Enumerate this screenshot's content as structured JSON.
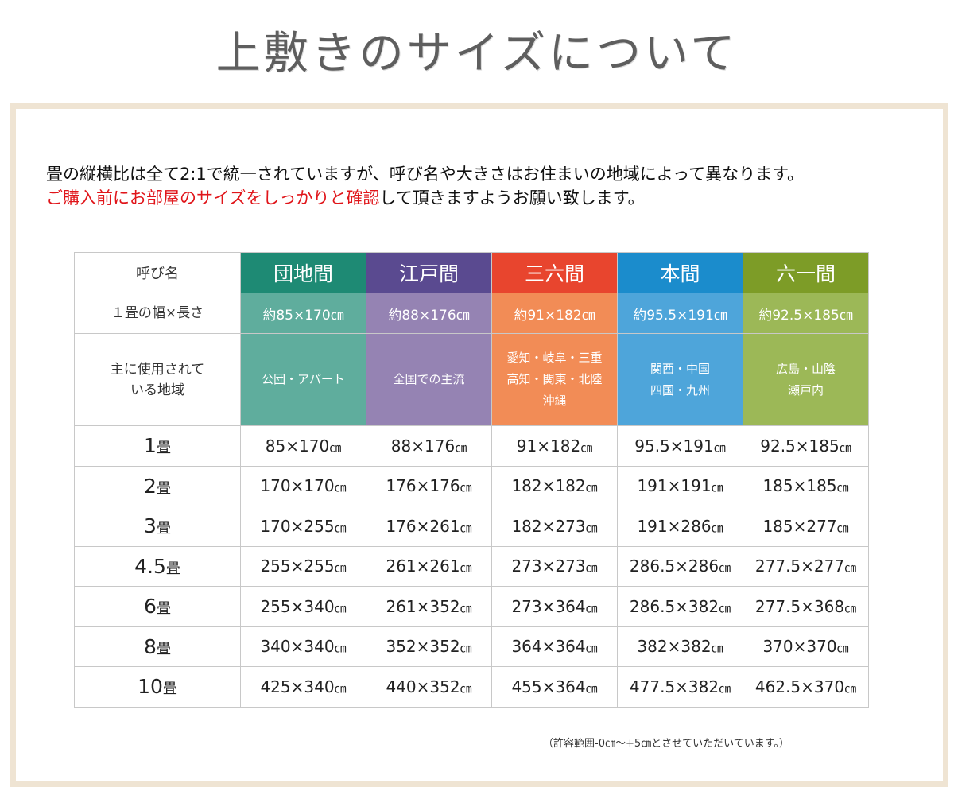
{
  "page": {
    "title": "上敷きのサイズについて",
    "intro_line1": "畳の縦横比は全て2:1で統一されていますが、呼び名や大きさはお住まいの地域によって異なります。",
    "intro_line2_red": "ご購入前にお部屋のサイズをしっかりと確認",
    "intro_line2_rest": "して頂きますようお願い致します。",
    "note": "（許容範囲-0㎝～+5㎝とさせていただいています。）"
  },
  "table": {
    "header_label": "呼び名",
    "size_label": "１畳の幅×長さ",
    "region_label_line1": "主に使用されて",
    "region_label_line2": "いる地域",
    "unit": "㎝",
    "columns": [
      {
        "name": "団地間",
        "size": "約85×170㎝",
        "regions": [
          "公団・アパート"
        ],
        "head_color": "#1e8a74",
        "sub_color": "#5fad9d"
      },
      {
        "name": "江戸間",
        "size": "約88×176㎝",
        "regions": [
          "全国での主流"
        ],
        "head_color": "#5a4a90",
        "sub_color": "#9583b3"
      },
      {
        "name": "三六間",
        "size": "約91×182㎝",
        "regions": [
          "愛知・岐阜・三重",
          "高知・関東・北陸",
          "沖縄"
        ],
        "head_color": "#e8452e",
        "sub_color": "#f28c56"
      },
      {
        "name": "本間",
        "size": "約95.5×191㎝",
        "regions": [
          "関西・中国",
          "四国・九州"
        ],
        "head_color": "#1b8ccc",
        "sub_color": "#4ea5da"
      },
      {
        "name": "六一間",
        "size": "約92.5×185㎝",
        "regions": [
          "広島・山陰",
          "瀬戸内"
        ],
        "head_color": "#7d9c27",
        "sub_color": "#9cb857"
      }
    ],
    "rows": [
      {
        "num": "1",
        "unit": "畳",
        "values": [
          "85×170",
          "88×176",
          "91×182",
          "95.5×191",
          "92.5×185"
        ]
      },
      {
        "num": "2",
        "unit": "畳",
        "values": [
          "170×170",
          "176×176",
          "182×182",
          "191×191",
          "185×185"
        ]
      },
      {
        "num": "3",
        "unit": "畳",
        "values": [
          "170×255",
          "176×261",
          "182×273",
          "191×286",
          "185×277"
        ]
      },
      {
        "num": "4.5",
        "unit": "畳",
        "values": [
          "255×255",
          "261×261",
          "273×273",
          "286.5×286",
          "277.5×277"
        ]
      },
      {
        "num": "6",
        "unit": "畳",
        "values": [
          "255×340",
          "261×352",
          "273×364",
          "286.5×382",
          "277.5×368"
        ]
      },
      {
        "num": "8",
        "unit": "畳",
        "values": [
          "340×340",
          "352×352",
          "364×364",
          "382×382",
          "370×370"
        ]
      },
      {
        "num": "10",
        "unit": "畳",
        "values": [
          "425×340",
          "440×352",
          "455×364",
          "477.5×382",
          "462.5×370"
        ]
      }
    ]
  }
}
